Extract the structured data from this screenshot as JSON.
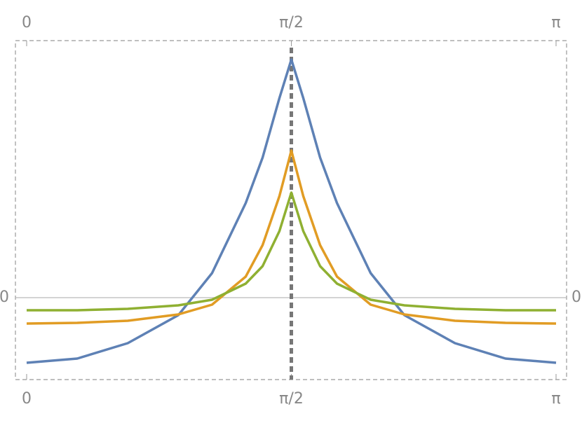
{
  "chart_data": {
    "type": "line",
    "x": [
      0,
      0.3,
      0.6,
      0.9,
      1.1,
      1.3,
      1.4,
      1.5,
      1.5708,
      1.6416,
      1.7416,
      1.8416,
      2.0416,
      2.2416,
      2.5416,
      2.8416,
      3.1416
    ],
    "series": [
      {
        "color": "#5e81b5",
        "values": [
          -0.93,
          -0.87,
          -0.65,
          -0.25,
          0.35,
          1.35,
          2.0,
          2.85,
          3.4,
          2.85,
          2.0,
          1.35,
          0.35,
          -0.25,
          -0.65,
          -0.87,
          -0.93
        ]
      },
      {
        "color": "#e19c24",
        "values": [
          -0.37,
          -0.36,
          -0.33,
          -0.24,
          -0.1,
          0.3,
          0.75,
          1.45,
          2.1,
          1.45,
          0.75,
          0.3,
          -0.1,
          -0.24,
          -0.33,
          -0.36,
          -0.37
        ]
      },
      {
        "color": "#8fb032",
        "values": [
          -0.18,
          -0.18,
          -0.16,
          -0.11,
          -0.03,
          0.2,
          0.45,
          0.95,
          1.5,
          0.95,
          0.45,
          0.2,
          -0.03,
          -0.11,
          -0.16,
          -0.18,
          -0.18
        ]
      }
    ],
    "xlim": [
      0,
      3.1416
    ],
    "ylim": [
      -1.17,
      3.67
    ],
    "xticks": [
      0,
      {
        "value": 1.5708,
        "label": "π/2"
      },
      {
        "value": 3.1416,
        "label": "π"
      }
    ],
    "yticks": [
      0
    ]
  }
}
